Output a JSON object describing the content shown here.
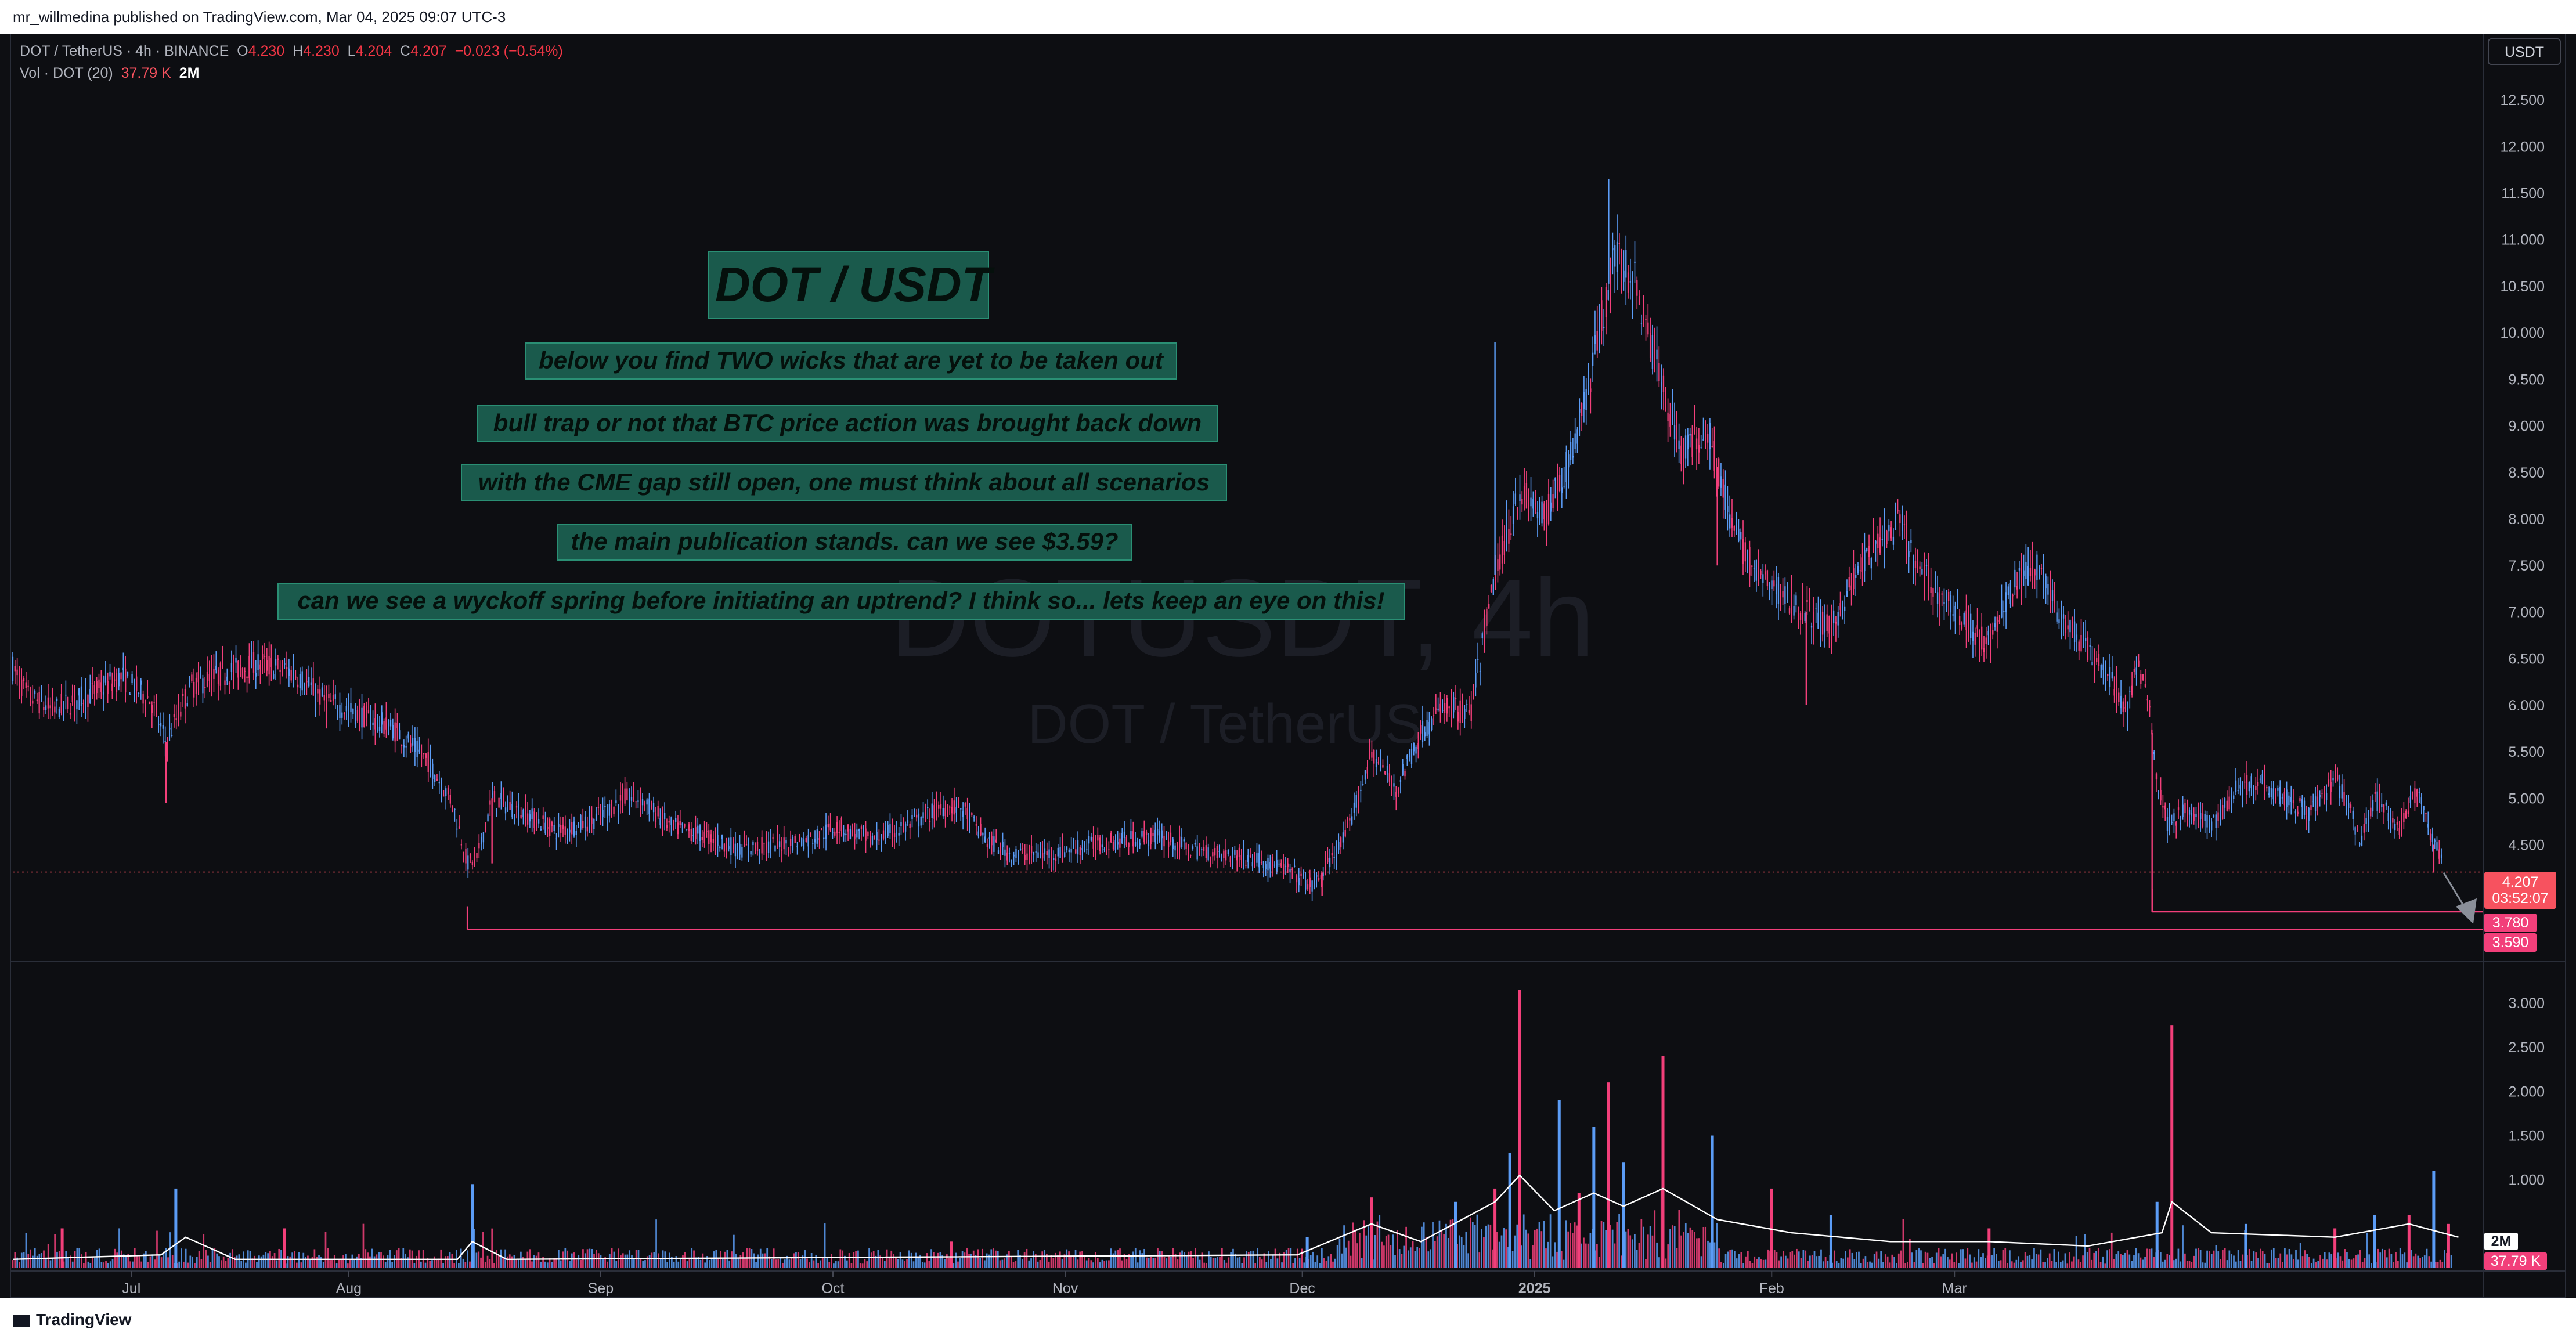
{
  "header": {
    "publisher": "mr_willmedina published on TradingView.com, Mar 04, 2025 09:07 UTC-3"
  },
  "footer": {
    "brand": "TradingView"
  },
  "legend": {
    "symbol": "DOT / TetherUS · 4h · BINANCE",
    "open_label": "O",
    "open": "4.230",
    "high_label": "H",
    "high": "4.230",
    "low_label": "L",
    "low": "4.204",
    "close_label": "C",
    "close": "4.207",
    "change": "−0.023 (−0.54%)",
    "vol_label": "Vol · DOT (20)",
    "vol_value": "37.79 K",
    "vol_ma": "2M"
  },
  "watermark": {
    "ticker": "DOTUSDT, 4h",
    "name": "DOT / TetherUS"
  },
  "notes": {
    "title": "DOT / USDT",
    "lines": [
      "below you find TWO wicks that are yet to be taken out",
      "bull trap or not that BTC price action was brought back down",
      "with the CME gap still open, one must think about all scenarios",
      "the main publication stands. can we see $3.59?",
      "can we see a wyckoff spring before initiating an uptrend? I think so... lets keep an eye on this!"
    ]
  },
  "price_axis": {
    "currency": "USDT",
    "current_price": "4.207",
    "countdown": "03:52:07",
    "level_1": "3.780",
    "level_2": "3.590"
  },
  "volume_axis": {
    "ma_tag": "2M",
    "vol_tag": "37.79 K"
  },
  "colors": {
    "up": "#5b9cf6",
    "down": "#f23f7a",
    "level": "#f23f7a",
    "note_bg": "#1a5a4c",
    "accent": "#f7525f"
  },
  "chart_data": [
    {
      "type": "candlestick",
      "title": "DOT / TetherUS · 4h · BINANCE",
      "x_ticks": [
        "Jul",
        "Aug",
        "Sep",
        "Oct",
        "Nov",
        "Dec",
        "2025",
        "Feb",
        "Mar"
      ],
      "y_ticks": [
        "12.500",
        "12.000",
        "11.500",
        "11.000",
        "10.500",
        "10.000",
        "9.500",
        "9.000",
        "8.500",
        "8.000",
        "7.500",
        "7.000",
        "6.500",
        "6.000",
        "5.500",
        "5.000",
        "4.500"
      ],
      "ylim": [
        3.35,
        12.7
      ],
      "price_path": [
        [
          0,
          6.4
        ],
        [
          3,
          6.1
        ],
        [
          8,
          5.95
        ],
        [
          15,
          6.1
        ],
        [
          22,
          6.3
        ],
        [
          28,
          6.05
        ],
        [
          31,
          5.6
        ],
        [
          36,
          6.2
        ],
        [
          43,
          6.35
        ],
        [
          50,
          6.45
        ],
        [
          57,
          6.35
        ],
        [
          63,
          6.05
        ],
        [
          70,
          5.9
        ],
        [
          77,
          5.75
        ],
        [
          84,
          5.4
        ],
        [
          89,
          4.95
        ],
        [
          92,
          4.3
        ],
        [
          94,
          4.35
        ],
        [
          97,
          5.0
        ],
        [
          103,
          4.85
        ],
        [
          110,
          4.65
        ],
        [
          117,
          4.75
        ],
        [
          124,
          5.0
        ],
        [
          127,
          5.0
        ],
        [
          133,
          4.7
        ],
        [
          140,
          4.6
        ],
        [
          147,
          4.45
        ],
        [
          154,
          4.5
        ],
        [
          161,
          4.55
        ],
        [
          167,
          4.7
        ],
        [
          174,
          4.55
        ],
        [
          181,
          4.7
        ],
        [
          188,
          4.9
        ],
        [
          192,
          4.9
        ],
        [
          197,
          4.55
        ],
        [
          202,
          4.4
        ],
        [
          210,
          4.4
        ],
        [
          218,
          4.5
        ],
        [
          225,
          4.55
        ],
        [
          232,
          4.6
        ],
        [
          238,
          4.45
        ],
        [
          245,
          4.4
        ],
        [
          252,
          4.35
        ],
        [
          259,
          4.2
        ],
        [
          263,
          4.05
        ],
        [
          265,
          4.2
        ],
        [
          270,
          4.6
        ],
        [
          275,
          5.5
        ],
        [
          280,
          5.1
        ],
        [
          285,
          5.7
        ],
        [
          290,
          6.0
        ],
        [
          295,
          5.9
        ],
        [
          300,
          7.4
        ],
        [
          305,
          8.3
        ],
        [
          310,
          8.0
        ],
        [
          315,
          8.6
        ],
        [
          320,
          9.7
        ],
        [
          324,
          10.8
        ],
        [
          328,
          10.6
        ],
        [
          333,
          9.6
        ],
        [
          338,
          8.7
        ],
        [
          343,
          9.0
        ],
        [
          348,
          7.9
        ],
        [
          353,
          7.4
        ],
        [
          358,
          7.2
        ],
        [
          363,
          7.0
        ],
        [
          368,
          6.8
        ],
        [
          372,
          7.3
        ],
        [
          377,
          7.7
        ],
        [
          382,
          7.95
        ],
        [
          385,
          7.5
        ],
        [
          390,
          7.2
        ],
        [
          395,
          6.9
        ],
        [
          400,
          6.65
        ],
        [
          405,
          7.3
        ],
        [
          410,
          7.5
        ],
        [
          415,
          6.9
        ],
        [
          420,
          6.6
        ],
        [
          425,
          6.25
        ],
        [
          428,
          5.9
        ],
        [
          430,
          6.45
        ],
        [
          432,
          6.2
        ],
        [
          434,
          5.2
        ],
        [
          436,
          4.75
        ],
        [
          440,
          4.85
        ],
        [
          445,
          4.7
        ],
        [
          450,
          5.1
        ],
        [
          455,
          5.2
        ],
        [
          460,
          5.0
        ],
        [
          465,
          4.85
        ],
        [
          470,
          5.2
        ],
        [
          473,
          4.9
        ],
        [
          475,
          4.5
        ],
        [
          478,
          5.0
        ],
        [
          483,
          4.7
        ],
        [
          487,
          5.1
        ],
        [
          490,
          4.5
        ],
        [
          492,
          4.3
        ]
      ],
      "wick_spikes": [
        [
          31,
          4.95
        ],
        [
          97,
          4.3
        ],
        [
          265,
          3.95
        ],
        [
          300,
          9.9
        ],
        [
          323,
          11.65
        ],
        [
          345,
          7.5
        ],
        [
          363,
          6.0
        ],
        [
          433,
          3.78
        ],
        [
          490,
          4.2
        ]
      ],
      "levels": [
        {
          "price": 3.78,
          "label": "3.780",
          "from_x": 433
        },
        {
          "price": 3.59,
          "label": "3.590",
          "from_x": 92
        }
      ],
      "current_price_line": 4.207,
      "projection_arrow": {
        "from": [
          492,
          4.2
        ],
        "to": [
          498,
          3.65
        ]
      }
    },
    {
      "type": "bar",
      "title": "Vol · DOT (20)",
      "y_ticks": [
        "3.000",
        "2.500",
        "2.000",
        "1.500",
        "1.000"
      ],
      "y_unit": "M",
      "ylim": [
        0,
        3.25
      ],
      "spikes": [
        [
          10,
          0.45
        ],
        [
          33,
          0.9
        ],
        [
          55,
          0.45
        ],
        [
          93,
          0.95
        ],
        [
          190,
          0.3
        ],
        [
          262,
          0.35
        ],
        [
          275,
          0.8
        ],
        [
          292,
          0.75
        ],
        [
          300,
          0.9
        ],
        [
          303,
          1.3
        ],
        [
          305,
          3.15
        ],
        [
          313,
          1.9
        ],
        [
          317,
          0.85
        ],
        [
          320,
          1.6
        ],
        [
          323,
          2.1
        ],
        [
          326,
          1.2
        ],
        [
          334,
          2.4
        ],
        [
          344,
          1.5
        ],
        [
          356,
          0.9
        ],
        [
          368,
          0.6
        ],
        [
          400,
          0.45
        ],
        [
          434,
          0.75
        ],
        [
          437,
          2.75
        ],
        [
          452,
          0.5
        ],
        [
          470,
          0.45
        ],
        [
          478,
          0.6
        ],
        [
          485,
          0.6
        ],
        [
          490,
          1.1
        ],
        [
          493,
          0.5
        ]
      ],
      "ma_path": [
        [
          0,
          0.1
        ],
        [
          30,
          0.15
        ],
        [
          35,
          0.35
        ],
        [
          45,
          0.1
        ],
        [
          90,
          0.1
        ],
        [
          93,
          0.3
        ],
        [
          100,
          0.1
        ],
        [
          260,
          0.15
        ],
        [
          275,
          0.5
        ],
        [
          285,
          0.3
        ],
        [
          300,
          0.75
        ],
        [
          305,
          1.05
        ],
        [
          312,
          0.65
        ],
        [
          320,
          0.85
        ],
        [
          326,
          0.7
        ],
        [
          334,
          0.9
        ],
        [
          345,
          0.55
        ],
        [
          360,
          0.4
        ],
        [
          380,
          0.3
        ],
        [
          400,
          0.3
        ],
        [
          420,
          0.25
        ],
        [
          435,
          0.4
        ],
        [
          437,
          0.75
        ],
        [
          445,
          0.4
        ],
        [
          470,
          0.35
        ],
        [
          485,
          0.5
        ],
        [
          495,
          0.35
        ]
      ]
    }
  ]
}
